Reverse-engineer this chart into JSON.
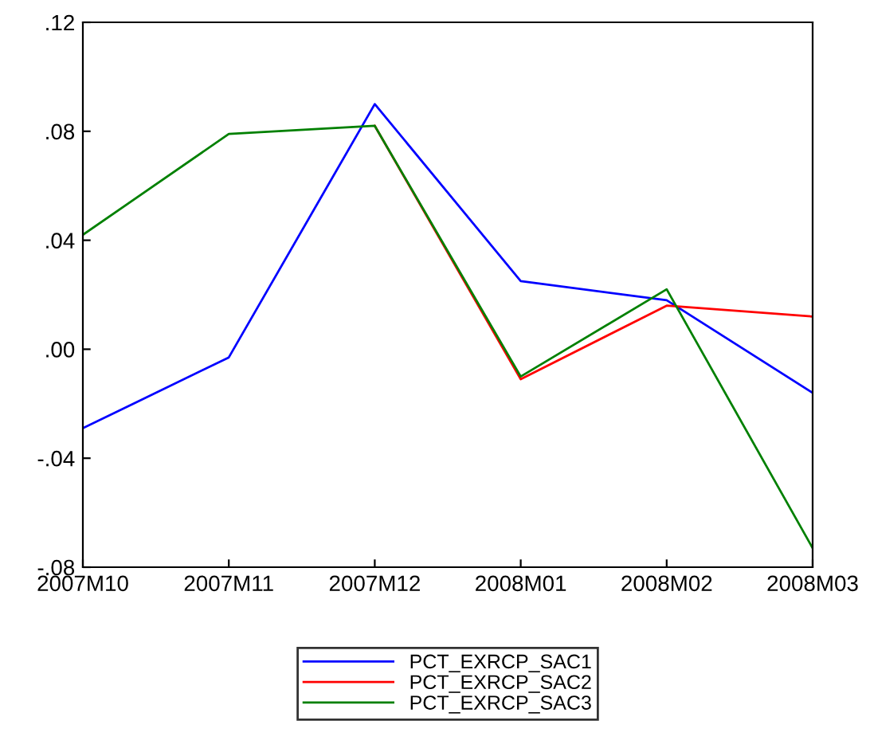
{
  "chart_data": {
    "type": "line",
    "categories": [
      "2007M10",
      "2007M11",
      "2007M12",
      "2008M01",
      "2008M02",
      "2008M03"
    ],
    "series": [
      {
        "name": "PCT_EXRCP_SAC1",
        "color": "#0000ff",
        "values": [
          -0.029,
          -0.003,
          0.09,
          0.025,
          0.018,
          -0.016
        ]
      },
      {
        "name": "PCT_EXRCP_SAC2",
        "color": "#ff0000",
        "values": [
          null,
          null,
          0.082,
          -0.011,
          0.016,
          0.012
        ]
      },
      {
        "name": "PCT_EXRCP_SAC3",
        "color": "#008000",
        "values": [
          0.042,
          0.079,
          0.082,
          -0.01,
          0.022,
          -0.073
        ]
      }
    ],
    "ylim": [
      -0.08,
      0.12
    ],
    "yticks": [
      {
        "value": -0.08,
        "label": "-.08"
      },
      {
        "value": -0.04,
        "label": "-.04"
      },
      {
        "value": 0,
        "label": ".00"
      },
      {
        "value": 0.04,
        "label": ".04"
      },
      {
        "value": 0.08,
        "label": ".08"
      },
      {
        "value": 0.12,
        "label": ".12"
      }
    ],
    "grid": false,
    "legend": "bottom",
    "marker": "none",
    "line_style": "solid"
  }
}
